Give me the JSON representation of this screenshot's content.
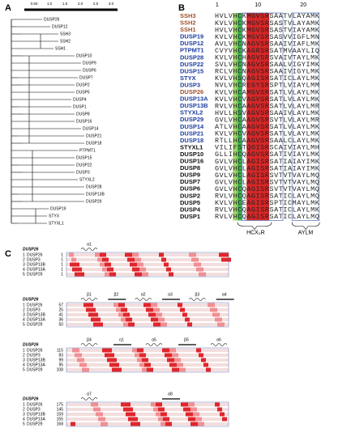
{
  "panel_a": {
    "label": "A",
    "scale_ticks": [
      "0.50",
      "1.0",
      "1.5",
      "2.0",
      "2.5",
      "3.0"
    ],
    "leaves": [
      "DUSP26",
      "DUSP12",
      "SSH3",
      "SSH2",
      "SSH1",
      "DUSP10",
      "DUSP9",
      "DUSP6",
      "DUSP7",
      "DUSP2",
      "DUSP5",
      "DUSP4",
      "DUSP1",
      "DUSP8",
      "DUSP16",
      "DUSP14",
      "DUSP21",
      "DUSP18",
      "PTPMT1",
      "DUSP15",
      "DUSP22",
      "DUSP3",
      "STYXL2",
      "DUSP28",
      "DUSP13B",
      "DUSP29",
      "DUSP19",
      "STYX",
      "STYXL1"
    ]
  },
  "panel_b": {
    "label": "B",
    "ruler": [
      "1",
      "10",
      "20"
    ],
    "rows": [
      {
        "name": "SSH3",
        "group": "ssh",
        "seq": "HVLVHCKMGVSRSAATVLAYAMK"
      },
      {
        "name": "SSH2",
        "group": "ssh",
        "seq": "KVLVHCKMGVSRSASTVLAYAMK"
      },
      {
        "name": "SSH1",
        "group": "ssh",
        "seq": "HVLVHCKMGVSRSASTVIAYAMK"
      },
      {
        "name": "DUSP19",
        "group": "blue",
        "seq": "KVLVHCKMGVSRSASVVIGFLMN"
      },
      {
        "name": "DUSP12",
        "group": "blue",
        "seq": "AVLVHCNAGVSRSAAIVIAFLMK"
      },
      {
        "name": "PTPMT1",
        "group": "blue",
        "seq": "CVYVHCKAGRSRSATMVAAYLIQ"
      },
      {
        "name": "DUSP28",
        "group": "blue",
        "seq": "KVLVHCHAGVSRSVAIVTAYLMK"
      },
      {
        "name": "DUSP22",
        "group": "blue",
        "seq": "SVLVHCNAGVSRSAALVIGYIMK"
      },
      {
        "name": "DUSP15",
        "group": "blue",
        "seq": "RCLVHCNAGVSRSAAIVIGYLMK"
      },
      {
        "name": "STYX",
        "group": "blue",
        "seq": "KVLVHSQAGISRSATICLAYLMK"
      },
      {
        "name": "DUSP3",
        "group": "blue",
        "seq": "NVLVHCREGYSRSPTLVIAYLMM"
      },
      {
        "name": "DUSP26",
        "group": "ssh",
        "seq": "KVLVHCAMGVSRSATLVLAYLMK"
      },
      {
        "name": "DUSP13A",
        "group": "blue",
        "seq": "KVLVHCVAGVSRSATLVLAYLMK"
      },
      {
        "name": "DUSP13B",
        "group": "blue",
        "seq": "RVLVHCAAGVSRSATLVLAYLMR"
      },
      {
        "name": "STYXL2",
        "group": "blue",
        "seq": "HVLLHSVAGVSRSAAIVLAYLMK"
      },
      {
        "name": "DUSP29",
        "group": "blue",
        "seq": "GVLVHCAAGVSRSVTLVLAYLMR"
      },
      {
        "name": "DUSP14",
        "group": "blue",
        "seq": "ATLVHCAAGVSRSATLVLAYLMK"
      },
      {
        "name": "DUSP21",
        "group": "blue",
        "seq": "KVLVHCVAGVSRSATLVLAYLMK"
      },
      {
        "name": "DUSP18",
        "group": "blue",
        "seq": "RTLLHCAAGVSRSAALCLAYLMK"
      },
      {
        "name": "STYXL1",
        "group": "black",
        "seq": "VILIFSTQGISRSCAIVIAYLMH"
      },
      {
        "name": "DUSP10",
        "group": "black",
        "seq": "GLLIHCQAGVSRSATIVIAYLMK"
      },
      {
        "name": "DUSP16",
        "group": "black",
        "seq": "GVLVHCLAGISRSATIAIAYIMK"
      },
      {
        "name": "DUSP8",
        "group": "black",
        "seq": "GVLVHCLAGISRSATIAIAYIMK"
      },
      {
        "name": "DUSP9",
        "group": "black",
        "seq": "GVLVHCLAGISRSVTVTVAYLMQ"
      },
      {
        "name": "DUSP7",
        "group": "black",
        "seq": "GVLVHCLAGISRSVTVTVAYLMQ"
      },
      {
        "name": "DUSP6",
        "group": "black",
        "seq": "GVLVHCQAGISRSVTVTVAYLMQ"
      },
      {
        "name": "DUSP2",
        "group": "black",
        "seq": "RVLVHCQAGISRSATICLAYLMQ"
      },
      {
        "name": "DUSP5",
        "group": "black",
        "seq": "KVLVHCEAGISRSPTICMAYLMK"
      },
      {
        "name": "DUSP4",
        "group": "black",
        "seq": "RVLVHCQAGISRSATICLAYLMK"
      },
      {
        "name": "DUSP1",
        "group": "black",
        "seq": "RVLVHCQAGISRSATICLAYLMQ"
      }
    ],
    "motifs": [
      "HCX₅R",
      "AYLM"
    ]
  },
  "panel_c": {
    "label": "C",
    "blocks": [
      {
        "header": "DUSP26",
        "structure": [
          "α1"
        ],
        "rows": [
          {
            "num": "1",
            "name": "DUSP26",
            "start": "1"
          },
          {
            "num": "2",
            "name": "DUSP3",
            "start": "1"
          },
          {
            "num": "3",
            "name": "DUSP13B",
            "start": "1"
          },
          {
            "num": "4",
            "name": "DUSP13A",
            "start": "1"
          },
          {
            "num": "5",
            "name": "DUSP29",
            "start": "1"
          }
        ]
      },
      {
        "header": "DUSP26",
        "structure": [
          "β1",
          "β2",
          "α2",
          "α3",
          "β3",
          "α4"
        ],
        "rows": [
          {
            "num": "1",
            "name": "DUSP26",
            "start": "57"
          },
          {
            "num": "2",
            "name": "DUSP3",
            "start": "25"
          },
          {
            "num": "3",
            "name": "DUSP13B",
            "start": "41"
          },
          {
            "num": "4",
            "name": "DUSP13A",
            "start": "36"
          },
          {
            "num": "5",
            "name": "DUSP29",
            "start": "50"
          }
        ]
      },
      {
        "header": "DUSP26",
        "structure": [
          "β4",
          "η1",
          "α5",
          "β5",
          "α6"
        ],
        "rows": [
          {
            "num": "1",
            "name": "DUSP26",
            "start": "115"
          },
          {
            "num": "2",
            "name": "DUSP3",
            "start": "83"
          },
          {
            "num": "3",
            "name": "DUSP13B",
            "start": "99"
          },
          {
            "num": "4",
            "name": "DUSP13A",
            "start": "95"
          },
          {
            "num": "5",
            "name": "DUSP29",
            "start": "108"
          }
        ]
      },
      {
        "header": "DUSP26",
        "structure": [
          "α7",
          "α8"
        ],
        "rows": [
          {
            "num": "1",
            "name": "DUSP26",
            "start": "175"
          },
          {
            "num": "2",
            "name": "DUSP3",
            "start": "145"
          },
          {
            "num": "3",
            "name": "DUSP13B",
            "start": "159"
          },
          {
            "num": "4",
            "name": "DUSP13A",
            "start": "155"
          },
          {
            "num": "5",
            "name": "DUSP29",
            "start": "168"
          }
        ]
      }
    ]
  }
}
